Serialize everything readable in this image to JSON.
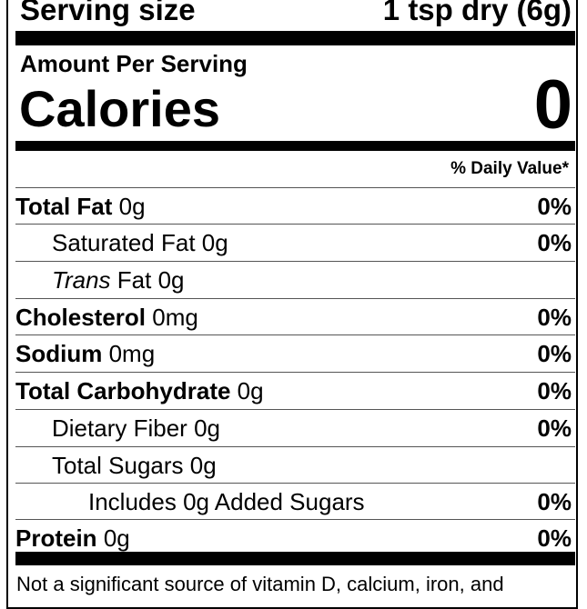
{
  "serving": {
    "label": "Serving size",
    "value": "1 tsp dry (6g)"
  },
  "amount_per_serving": "Amount Per Serving",
  "calories": {
    "label": "Calories",
    "value": "0"
  },
  "daily_value_header": "% Daily Value*",
  "rows": [
    {
      "name": "Total Fat",
      "amount": "0g",
      "dv": "0%",
      "bold": true,
      "indent": 0
    },
    {
      "name": "Saturated Fat",
      "amount": "0g",
      "dv": "0%",
      "bold": false,
      "indent": 1
    },
    {
      "name_italic": "Trans",
      "name": "Fat",
      "amount": "0g",
      "dv": "",
      "bold": false,
      "indent": 1
    },
    {
      "name": "Cholesterol",
      "amount": "0mg",
      "dv": "0%",
      "bold": true,
      "indent": 0
    },
    {
      "name": "Sodium",
      "amount": "0mg",
      "dv": "0%",
      "bold": true,
      "indent": 0
    },
    {
      "name": "Total Carbohydrate",
      "amount": "0g",
      "dv": "0%",
      "bold": true,
      "indent": 0
    },
    {
      "name": "Dietary Fiber",
      "amount": "0g",
      "dv": "0%",
      "bold": false,
      "indent": 1
    },
    {
      "name": "Total Sugars",
      "amount": "0g",
      "dv": "",
      "bold": false,
      "indent": 1
    },
    {
      "name": "Includes 0g Added Sugars",
      "amount": "",
      "dv": "0%",
      "bold": false,
      "indent": 2
    },
    {
      "name": "Protein",
      "amount": "0g",
      "dv": "0%",
      "bold": true,
      "indent": 0
    }
  ],
  "footnote": "Not a significant source of vitamin D, calcium, iron, and"
}
